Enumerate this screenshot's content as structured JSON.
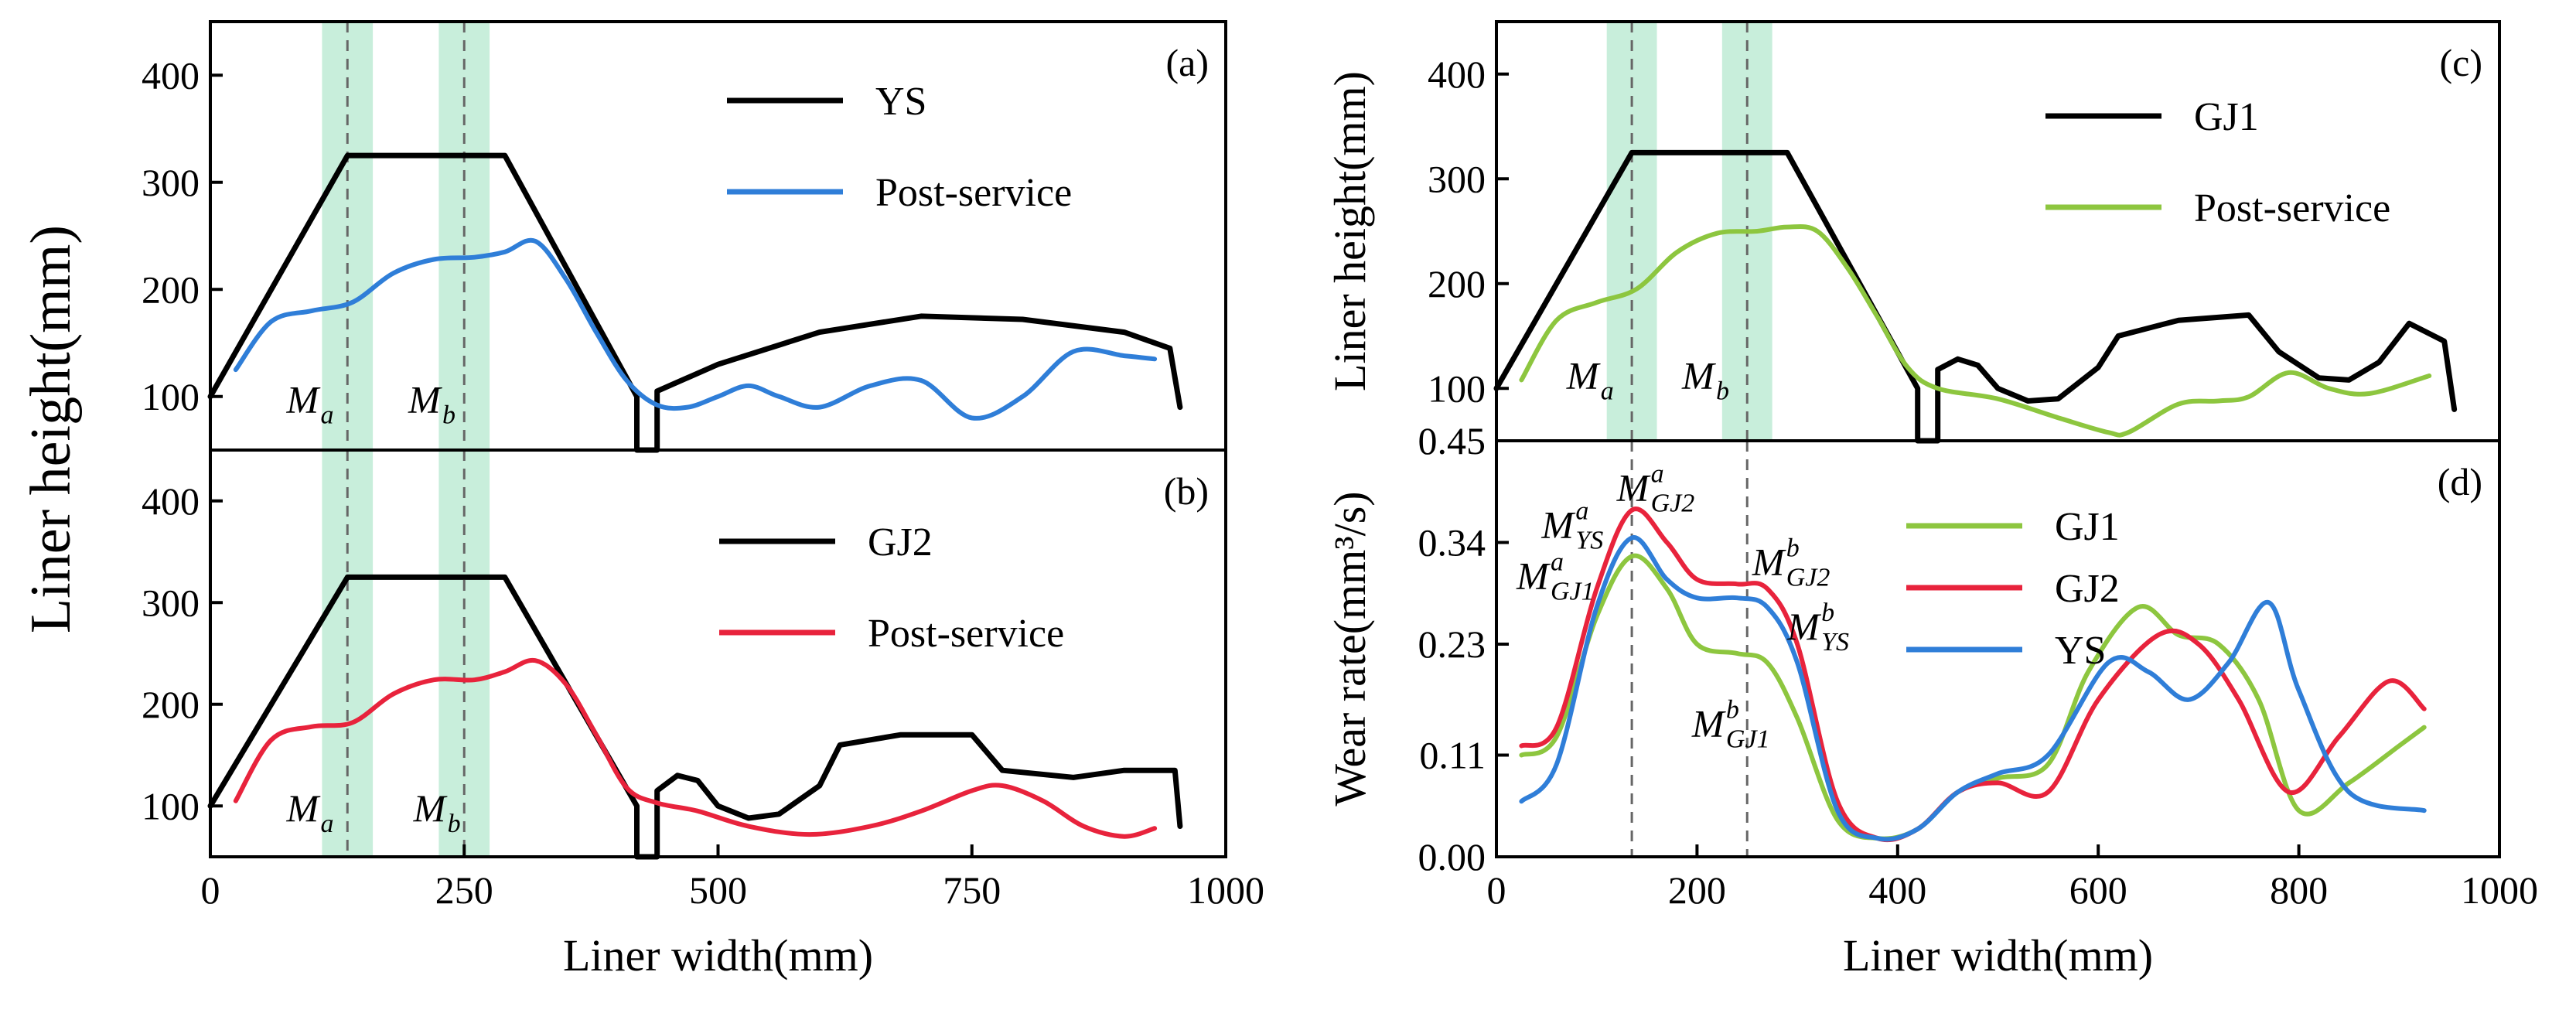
{
  "chart_data": [
    {
      "id": "a",
      "type": "line",
      "panel_label": "(a)",
      "xlim": [
        0,
        1000
      ],
      "ylim": [
        50,
        450
      ],
      "yticks": [
        100,
        200,
        300,
        400
      ],
      "xticks": [],
      "ylabel": "Liner height(mm)",
      "xlabel": "",
      "legend_position": "top-center",
      "series": [
        {
          "name": "YS",
          "color": "#000000",
          "x": [
            0,
            135,
            290,
            420,
            420,
            440,
            440,
            500,
            600,
            700,
            800,
            900,
            945,
            955
          ],
          "y": [
            100,
            325,
            325,
            100,
            50,
            50,
            105,
            130,
            160,
            175,
            172,
            160,
            145,
            90
          ]
        },
        {
          "name": "Post-service",
          "color": "#2f7ed8",
          "x": [
            25,
            60,
            100,
            140,
            180,
            220,
            260,
            290,
            320,
            350,
            380,
            410,
            440,
            470,
            500,
            530,
            560,
            600,
            650,
            700,
            750,
            800,
            850,
            900,
            930
          ],
          "y": [
            125,
            170,
            180,
            188,
            215,
            228,
            230,
            235,
            245,
            210,
            160,
            115,
            92,
            90,
            100,
            110,
            100,
            90,
            110,
            115,
            80,
            100,
            142,
            138,
            135
          ]
        }
      ],
      "annotations": [
        {
          "main": "M",
          "sub": "a",
          "sup": "",
          "x": 75,
          "y": 85
        },
        {
          "main": "M",
          "sub": "b",
          "sup": "",
          "x": 195,
          "y": 85
        }
      ],
      "bands": [
        [
          110,
          160
        ],
        [
          225,
          275
        ]
      ],
      "dashed_x": [
        135,
        250
      ]
    },
    {
      "id": "b",
      "type": "line",
      "panel_label": "(b)",
      "xlim": [
        0,
        1000
      ],
      "ylim": [
        50,
        450
      ],
      "yticks": [
        100,
        200,
        300,
        400
      ],
      "xticks": [
        0,
        250,
        500,
        750,
        1000
      ],
      "ylabel": "",
      "xlabel": "Liner width(mm)",
      "legend_position": "top-center",
      "series": [
        {
          "name": "GJ2",
          "color": "#000000",
          "x": [
            0,
            135,
            290,
            420,
            420,
            440,
            440,
            460,
            480,
            500,
            530,
            560,
            600,
            620,
            680,
            750,
            780,
            850,
            900,
            950,
            955
          ],
          "y": [
            100,
            325,
            325,
            100,
            50,
            50,
            115,
            130,
            125,
            100,
            88,
            92,
            120,
            160,
            170,
            170,
            135,
            128,
            135,
            135,
            80
          ]
        },
        {
          "name": "Post-service",
          "color": "#e8233c",
          "x": [
            25,
            60,
            100,
            140,
            180,
            220,
            260,
            290,
            320,
            350,
            380,
            410,
            440,
            480,
            530,
            590,
            650,
            700,
            750,
            780,
            820,
            860,
            900,
            930
          ],
          "y": [
            105,
            165,
            178,
            182,
            210,
            224,
            224,
            232,
            243,
            220,
            170,
            118,
            103,
            95,
            80,
            72,
            80,
            95,
            115,
            120,
            105,
            80,
            70,
            78
          ]
        }
      ],
      "annotations": [
        {
          "main": "M",
          "sub": "a",
          "sup": "",
          "x": 75,
          "y": 85
        },
        {
          "main": "M",
          "sub": "b",
          "sup": "",
          "x": 200,
          "y": 85
        }
      ],
      "bands": [
        [
          110,
          160
        ],
        [
          225,
          275
        ]
      ],
      "dashed_x": [
        135,
        250
      ]
    },
    {
      "id": "c",
      "type": "line",
      "panel_label": "(c)",
      "xlim": [
        0,
        1000
      ],
      "ylim": [
        50,
        450
      ],
      "yticks": [
        100,
        200,
        300,
        400
      ],
      "xticks": [],
      "ylabel": "Liner height(mm)",
      "xlabel": "",
      "legend_position": "top-center",
      "series": [
        {
          "name": "GJ1",
          "color": "#000000",
          "x": [
            0,
            135,
            290,
            420,
            420,
            440,
            440,
            460,
            480,
            500,
            530,
            560,
            600,
            620,
            680,
            750,
            780,
            820,
            850,
            880,
            910,
            945,
            955
          ],
          "y": [
            100,
            325,
            325,
            100,
            50,
            50,
            118,
            128,
            122,
            100,
            88,
            90,
            120,
            150,
            165,
            170,
            135,
            110,
            108,
            125,
            162,
            145,
            80
          ]
        },
        {
          "name": "Post-service",
          "color": "#8dc63f",
          "x": [
            25,
            60,
            100,
            140,
            180,
            220,
            260,
            290,
            320,
            350,
            380,
            410,
            440,
            500,
            560,
            610,
            630,
            680,
            720,
            750,
            790,
            830,
            870,
            930
          ],
          "y": [
            108,
            165,
            182,
            195,
            230,
            248,
            250,
            254,
            250,
            215,
            168,
            120,
            100,
            90,
            72,
            58,
            58,
            85,
            88,
            92,
            115,
            100,
            95,
            112
          ]
        }
      ],
      "annotations": [
        {
          "main": "M",
          "sub": "a",
          "sup": "",
          "x": 70,
          "y": 100
        },
        {
          "main": "M",
          "sub": "b",
          "sup": "",
          "x": 185,
          "y": 100
        }
      ],
      "bands": [
        [
          110,
          160
        ],
        [
          225,
          275
        ]
      ],
      "dashed_x": [
        135,
        250
      ]
    },
    {
      "id": "d",
      "type": "line",
      "panel_label": "(d)",
      "xlim": [
        0,
        1000
      ],
      "ylim": [
        0,
        0.45
      ],
      "yticks": [
        0.0,
        0.11,
        0.23,
        0.34,
        0.45
      ],
      "ytick_labels": [
        "0.00",
        "0.11",
        "0.23",
        "0.34",
        "0.45"
      ],
      "xticks": [
        0,
        200,
        400,
        600,
        800,
        1000
      ],
      "ylabel": "Wear rate(mm³/s)",
      "xlabel": "Liner width(mm)",
      "legend_position": "top-center",
      "series": [
        {
          "name": "GJ1",
          "color": "#8dc63f",
          "x": [
            25,
            60,
            100,
            135,
            170,
            200,
            240,
            270,
            300,
            340,
            380,
            420,
            460,
            500,
            550,
            590,
            640,
            680,
            720,
            760,
            800,
            850,
            900,
            925
          ],
          "y": [
            0.11,
            0.13,
            0.26,
            0.325,
            0.29,
            0.23,
            0.22,
            0.21,
            0.15,
            0.04,
            0.02,
            0.03,
            0.07,
            0.085,
            0.1,
            0.2,
            0.27,
            0.24,
            0.23,
            0.17,
            0.05,
            0.08,
            0.12,
            0.14
          ]
        },
        {
          "name": "GJ2",
          "color": "#e8233c",
          "x": [
            25,
            60,
            100,
            135,
            170,
            200,
            240,
            270,
            300,
            340,
            380,
            420,
            460,
            500,
            550,
            600,
            660,
            700,
            740,
            790,
            840,
            890,
            925
          ],
          "y": [
            0.12,
            0.14,
            0.29,
            0.375,
            0.34,
            0.3,
            0.295,
            0.29,
            0.23,
            0.06,
            0.02,
            0.03,
            0.07,
            0.08,
            0.07,
            0.17,
            0.24,
            0.23,
            0.17,
            0.07,
            0.13,
            0.19,
            0.16
          ]
        },
        {
          "name": "YS",
          "color": "#2f7ed8",
          "x": [
            25,
            60,
            100,
            135,
            170,
            200,
            240,
            270,
            300,
            340,
            380,
            420,
            460,
            500,
            550,
            610,
            650,
            690,
            730,
            770,
            800,
            850,
            925
          ],
          "y": [
            0.06,
            0.1,
            0.27,
            0.345,
            0.3,
            0.28,
            0.28,
            0.27,
            0.21,
            0.05,
            0.02,
            0.03,
            0.07,
            0.09,
            0.11,
            0.21,
            0.2,
            0.17,
            0.21,
            0.275,
            0.18,
            0.07,
            0.05
          ]
        }
      ],
      "annotations": [
        {
          "main": "M",
          "sup": "a",
          "sub": "GJ2",
          "x": 120,
          "y": 0.385
        },
        {
          "main": "M",
          "sup": "a",
          "sub": "YS",
          "x": 45,
          "y": 0.345
        },
        {
          "main": "M",
          "sup": "a",
          "sub": "GJ1",
          "x": 20,
          "y": 0.29
        },
        {
          "main": "M",
          "sup": "b",
          "sub": "GJ2",
          "x": 255,
          "y": 0.305
        },
        {
          "main": "M",
          "sup": "b",
          "sub": "YS",
          "x": 290,
          "y": 0.235
        },
        {
          "main": "M",
          "sup": "b",
          "sub": "GJ1",
          "x": 195,
          "y": 0.13
        }
      ],
      "bands": [],
      "dashed_x": [
        135,
        250
      ]
    }
  ]
}
